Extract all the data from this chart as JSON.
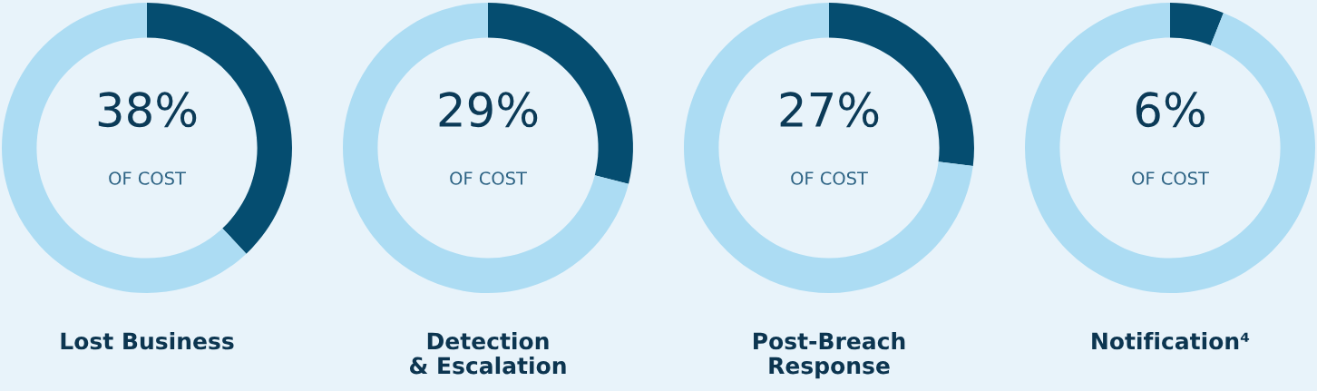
{
  "chart_data": [
    {
      "type": "donut",
      "title": "Lost Business",
      "categories": [
        null,
        null
      ],
      "values": [
        38,
        62
      ],
      "colors": [
        "#054d70",
        "#acdcf3"
      ],
      "value_labels": [
        "38%",
        null
      ],
      "annotations": [
        "OF COST"
      ]
    },
    {
      "type": "donut",
      "title": "Detection\n& Escalation",
      "categories": [
        null,
        null
      ],
      "values": [
        29,
        71
      ],
      "colors": [
        "#054d70",
        "#acdcf3"
      ],
      "value_labels": [
        "29%",
        null
      ],
      "annotations": [
        "OF COST"
      ]
    },
    {
      "type": "donut",
      "title": "Post-Breach\nResponse",
      "categories": [
        null,
        null
      ],
      "values": [
        27,
        73
      ],
      "colors": [
        "#054d70",
        "#acdcf3"
      ],
      "value_labels": [
        "27%",
        null
      ],
      "annotations": [
        "OF COST"
      ]
    },
    {
      "type": "donut",
      "title": "Notification⁴",
      "categories": [
        null,
        null
      ],
      "values": [
        6,
        94
      ],
      "colors": [
        "#054d70",
        "#acdcf3"
      ],
      "value_labels": [
        "6%",
        null
      ],
      "annotations": [
        "OF COST"
      ]
    }
  ]
}
